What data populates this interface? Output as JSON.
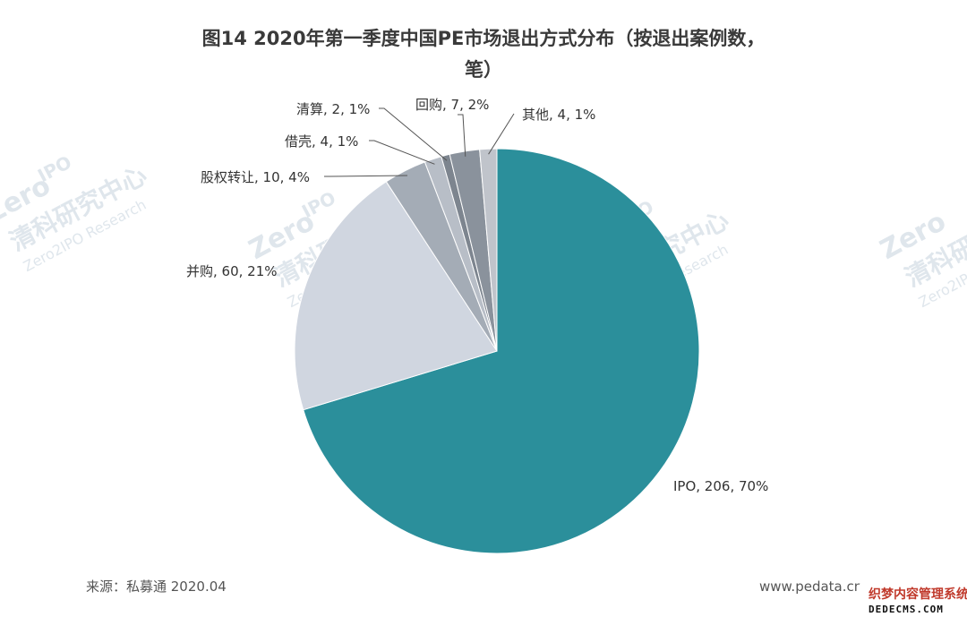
{
  "chart_data": {
    "type": "pie",
    "title_line1": "图14  2020年第一季度中国PE市场退出方式分布（按退出案例数，",
    "title_line2": "笔）",
    "slices": [
      {
        "label": "IPO",
        "value": 206,
        "percent": "70%",
        "text": "IPO, 206, 70%",
        "color": "#2b8f9b"
      },
      {
        "label": "并购",
        "value": 60,
        "percent": "21%",
        "text": "并购, 60, 21%",
        "color": "#d0d6e0"
      },
      {
        "label": "股权转让",
        "value": 10,
        "percent": "4%",
        "text": "股权转让, 10, 4%",
        "color": "#a4acb6"
      },
      {
        "label": "借壳",
        "value": 4,
        "percent": "1%",
        "text": "借壳, 4, 1%",
        "color": "#b8bec7"
      },
      {
        "label": "清算",
        "value": 2,
        "percent": "1%",
        "text": "清算, 2, 1%",
        "color": "#7d858f"
      },
      {
        "label": "回购",
        "value": 7,
        "percent": "2%",
        "text": "回购, 7, 2%",
        "color": "#8a929c"
      },
      {
        "label": "其他",
        "value": 4,
        "percent": "1%",
        "text": "其他, 4, 1%",
        "color": "#c0c4cb"
      }
    ]
  },
  "footer": {
    "source": "来源：私募通 2020.04",
    "website": "www.pedata.cn"
  },
  "watermark": {
    "brand": "Zero",
    "brand_ipo": "IPO",
    "chinese": "清科研究中心",
    "english": "Zero2IPO Research"
  },
  "corner_watermark": {
    "line1": "织梦内容管理系统",
    "line2": "DEDECMS.COM"
  }
}
